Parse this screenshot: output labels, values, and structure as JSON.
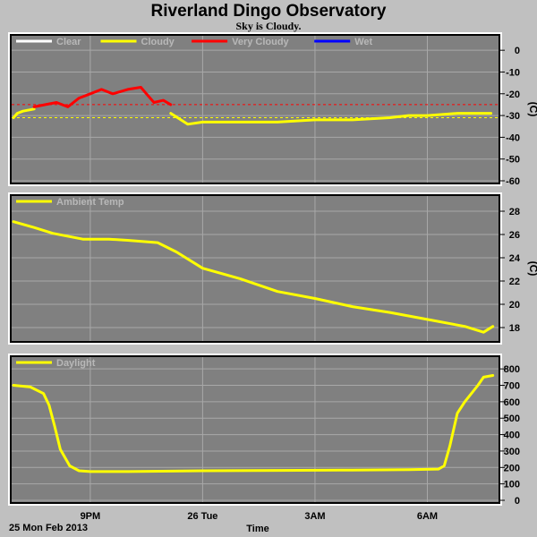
{
  "chart_data": {
    "title": "Riverland Dingo Observatory",
    "subtitle": "Sky is Cloudy.",
    "date_label": "25 Mon Feb 2013",
    "xlabel": "Time",
    "x_tick_labels": [
      "9PM",
      "26 Tue",
      "3AM",
      "6AM"
    ],
    "colors": {
      "background": "#c0c0c0",
      "plot_bg": "#808080",
      "grid": "#a8a8a8",
      "clear": "#ffffff",
      "cloudy": "#ffff00",
      "very_cloudy": "#ff0000",
      "wet": "#0000ff"
    },
    "panels": [
      {
        "name": "sky",
        "type": "line",
        "unit": "(C)",
        "ylim": [
          -60,
          5
        ],
        "yticks": [
          0,
          -10,
          -20,
          -30,
          -40,
          -50,
          -60
        ],
        "legend": [
          {
            "name": "Clear",
            "color": "#ffffff"
          },
          {
            "name": "Cloudy",
            "color": "#ffff00"
          },
          {
            "name": "Very Cloudy",
            "color": "#ff0000"
          },
          {
            "name": "Wet",
            "color": "#0000ff"
          }
        ],
        "thresholds": [
          {
            "value": -25,
            "color": "#ff0000"
          },
          {
            "value": -31,
            "color": "#ffff00"
          }
        ],
        "series": [
          {
            "condition": "Cloudy",
            "color": "#ffff00",
            "x": [
              18.95,
              19.05,
              19.2,
              19.5
            ],
            "y": [
              -31,
              -29,
              -28,
              -27
            ]
          },
          {
            "condition": "Very Cloudy",
            "color": "#ff0000",
            "x": [
              19.5,
              19.8,
              20.1,
              20.4,
              20.7,
              21.0,
              21.3,
              21.6,
              22.0,
              22.35,
              22.5,
              22.7,
              22.95,
              23.15
            ],
            "y": [
              -26,
              -25,
              -24,
              -26,
              -22,
              -20,
              -18,
              -20,
              -18,
              -17,
              -20,
              -24,
              -23,
              -25
            ]
          },
          {
            "condition": "Cloudy",
            "color": "#ffff00",
            "x": [
              23.15,
              23.6,
              24.0,
              25.0,
              26.0,
              27.0,
              28.0,
              29.0,
              29.5,
              30.0,
              30.8,
              31.7
            ],
            "y": [
              -29,
              -34,
              -33,
              -33,
              -33,
              -32,
              -32,
              -31,
              -30,
              -30,
              -29,
              -29
            ]
          }
        ]
      },
      {
        "name": "ambient",
        "type": "line",
        "unit": "(C)",
        "ylim": [
          17,
          29
        ],
        "yticks": [
          28,
          26,
          24,
          22,
          20,
          18
        ],
        "legend": [
          {
            "name": "Ambient Temp",
            "color": "#ffff00"
          }
        ],
        "series": [
          {
            "name": "Ambient Temp",
            "color": "#ffff00",
            "x": [
              18.95,
              19.5,
              20.0,
              20.8,
              21.5,
              22.0,
              22.8,
              23.3,
              24.0,
              25.0,
              26.0,
              27.0,
              28.0,
              29.0,
              30.0,
              31.0,
              31.5,
              31.75
            ],
            "y": [
              27.1,
              26.6,
              26.1,
              25.6,
              25.6,
              25.5,
              25.3,
              24.5,
              23.1,
              22.2,
              21.1,
              20.5,
              19.8,
              19.3,
              18.7,
              18.1,
              17.6,
              18.1
            ]
          }
        ]
      },
      {
        "name": "daylight",
        "type": "line",
        "unit": "",
        "ylim": [
          0,
          850
        ],
        "yticks": [
          800,
          700,
          600,
          500,
          400,
          300,
          200,
          100,
          0
        ],
        "legend": [
          {
            "name": "Daylight",
            "color": "#ffff00"
          }
        ],
        "series": [
          {
            "name": "Daylight",
            "color": "#ffff00",
            "x": [
              18.95,
              19.4,
              19.75,
              19.9,
              20.05,
              20.2,
              20.45,
              20.7,
              21.0,
              22.0,
              24.0,
              26.0,
              28.0,
              29.5,
              30.3,
              30.45,
              30.6,
              30.8,
              31.0,
              31.35,
              31.5,
              31.75
            ],
            "y": [
              700,
              690,
              650,
              580,
              450,
              310,
              210,
              180,
              175,
              175,
              180,
              182,
              184,
              187,
              190,
              210,
              330,
              530,
              600,
              700,
              750,
              760
            ]
          }
        ]
      }
    ]
  }
}
